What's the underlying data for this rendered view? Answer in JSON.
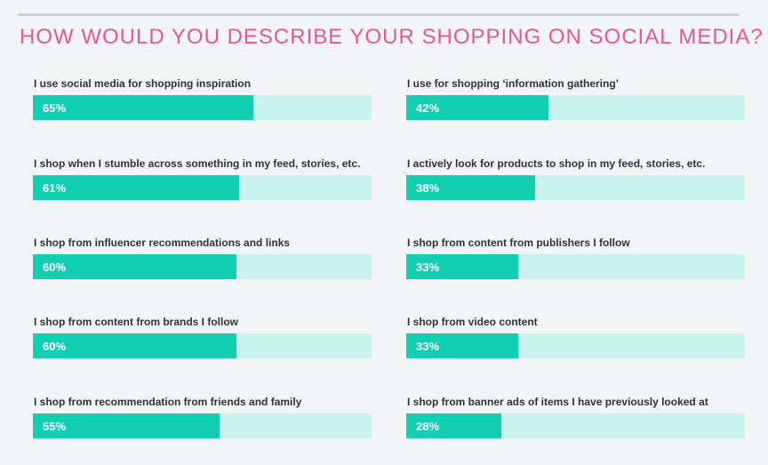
{
  "title": "HOW WOULD YOU DESCRIBE YOUR SHOPPING ON SOCIAL MEDIA?",
  "colors": {
    "title": "#e8588a",
    "bar_fill": "#12cfb2",
    "bar_track": "#c9f4ee",
    "background": "#f3f4f6"
  },
  "chart_data": {
    "type": "bar",
    "orientation": "horizontal",
    "title": "HOW WOULD YOU DESCRIBE YOUR SHOPPING ON SOCIAL MEDIA?",
    "xlim": [
      0,
      100
    ],
    "unit": "%",
    "layout": "two-column",
    "categories": [
      "I use social media for shopping inspiration",
      "I shop when I stumble across something in my feed, stories, etc.",
      "I shop from influencer recommendations and links",
      "I shop from content from brands I follow",
      "I shop from recommendation from friends and family",
      "I use for shopping ‘information gathering’",
      "I actively look for products to shop in my feed, stories, etc.",
      "I shop from content from publishers I follow",
      "I shop from video content",
      "I shop from banner ads of items I have previously looked at"
    ],
    "values": [
      65,
      61,
      60,
      60,
      55,
      42,
      38,
      33,
      33,
      28
    ],
    "value_labels": [
      "65%",
      "61%",
      "60%",
      "60%",
      "55%",
      "42%",
      "38%",
      "33%",
      "33%",
      "28%"
    ]
  }
}
